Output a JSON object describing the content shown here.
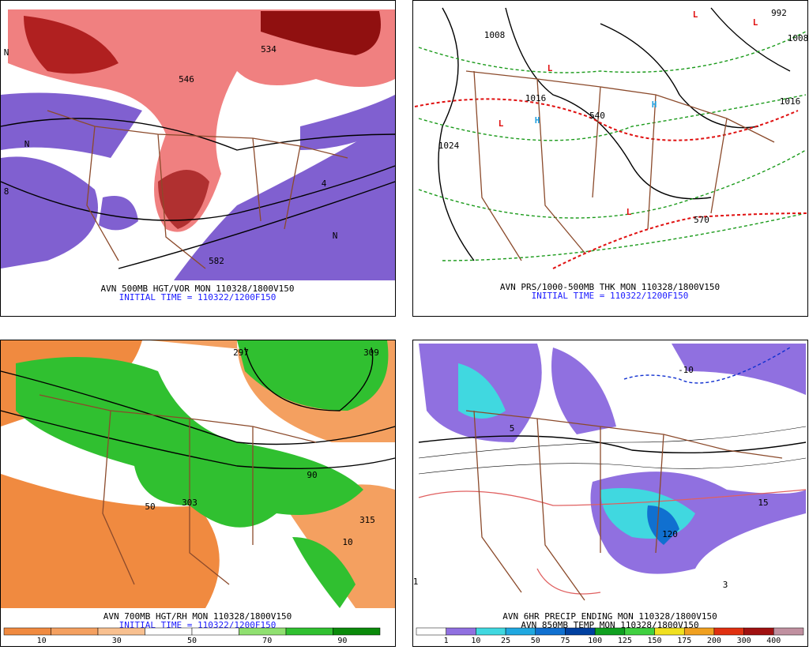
{
  "panels": [
    {
      "caption": "AVN 500MB HGT/VOR MON 110328/1800V150",
      "initial": "INITIAL TIME = 110322/1200F150",
      "labels": [
        "534",
        "546",
        "582",
        "N",
        "N",
        "N",
        "8",
        "4"
      ]
    },
    {
      "caption": "AVN PRS/1000-500MB THK MON 110328/1800V150",
      "initial": "INITIAL TIME = 110322/1200F150",
      "labels": [
        "L",
        "L",
        "L",
        "L",
        "L",
        "H",
        "H",
        "1008",
        "1016",
        "1024",
        "1016",
        "1008",
        "992",
        "540",
        "570"
      ]
    },
    {
      "caption": "AVN 700MB HGT/RH MON 110328/1800V150",
      "initial": "INITIAL TIME = 110322/1200F150",
      "labels": [
        "309",
        "297",
        "303",
        "315",
        "50",
        "10",
        "90"
      ],
      "legend": {
        "colors": [
          "#f08a40",
          "#f4a060",
          "#f8c090",
          "#ffffff",
          "#ffffff",
          "#90e070",
          "#30c030",
          "#0a8a0a"
        ],
        "values": [
          10,
          30,
          50,
          70,
          90
        ]
      }
    },
    {
      "caption": "AVN 6HR PRECIP ENDING MON 110328/1800V150",
      "initial": "AVN 850MB TEMP MON 110328/1800V150",
      "labels": [
        "15",
        "-10",
        "120",
        "1",
        "3",
        "5"
      ],
      "legend": {
        "colors": [
          "#ffffff",
          "#9070e0",
          "#40d8e0",
          "#20a8e0",
          "#1070d0",
          "#0040a0",
          "#10a020",
          "#40d040",
          "#f0e020",
          "#f0a020",
          "#e03010",
          "#a01010",
          "#c090a0"
        ],
        "values": [
          1,
          10,
          25,
          50,
          75,
          100,
          125,
          150,
          175,
          200,
          300,
          400
        ]
      }
    }
  ]
}
